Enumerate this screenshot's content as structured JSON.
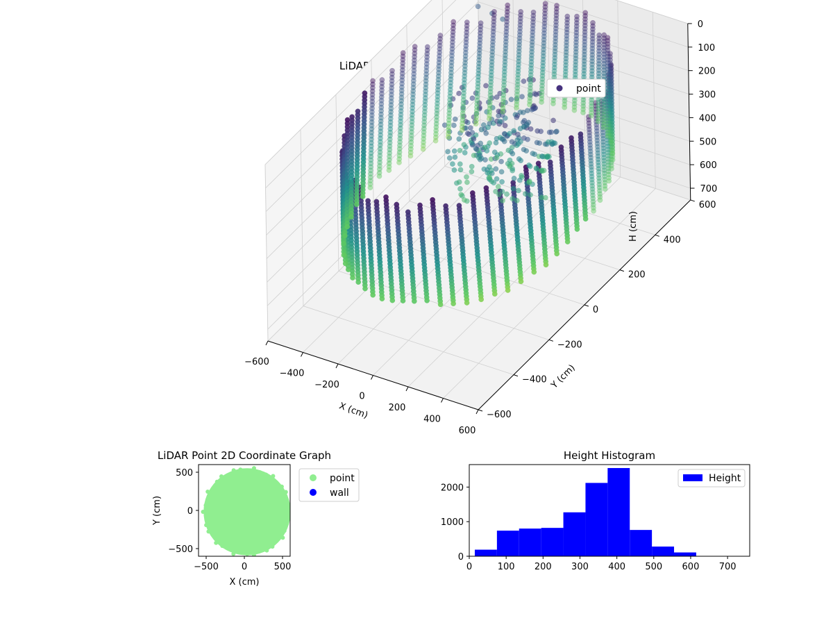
{
  "chart_data": [
    {
      "type": "scatter",
      "title": "LiDAR Point 3D Coordinate Graph",
      "projection": "3d",
      "xlabel": "X (cm)",
      "ylabel": "Y (cm)",
      "zlabel": "H (cm)",
      "xlim": [
        -600,
        600
      ],
      "ylim": [
        -600,
        600
      ],
      "zlim": [
        0,
        750
      ],
      "z_inverted": true,
      "x_ticks": [
        "−600",
        "−400",
        "−200",
        "0",
        "200",
        "400",
        "600"
      ],
      "y_ticks": [
        "−600",
        "−400",
        "−200",
        "0",
        "200",
        "400",
        "600"
      ],
      "z_ticks": [
        "0",
        "100",
        "200",
        "300",
        "400",
        "500",
        "600",
        "700"
      ],
      "colormap": "viridis",
      "grid": true,
      "legend": {
        "position": "top-right",
        "entries": [
          {
            "label": "point",
            "color": "#46327e"
          }
        ]
      },
      "series": [
        {
          "name": "point",
          "shape": "ring of vertical scan columns, radius ~550 cm"
        }
      ]
    },
    {
      "type": "scatter",
      "title": "LiDAR Point 2D Coordinate Graph",
      "xlabel": "X (cm)",
      "ylabel": "Y (cm)",
      "xlim": [
        -600,
        600
      ],
      "ylim": [
        -600,
        600
      ],
      "x_ticks": [
        "−500",
        "0",
        "500"
      ],
      "y_ticks": [
        "−500",
        "0",
        "500"
      ],
      "legend": {
        "position": "outside-right",
        "entries": [
          {
            "label": "point",
            "color": "#90ee90"
          },
          {
            "label": "wall",
            "color": "#0000ff"
          }
        ]
      },
      "series": [
        {
          "name": "point",
          "color": "#90ee90",
          "shape": "filled disc, radius ~560 cm"
        },
        {
          "name": "wall",
          "color": "#0000ff",
          "points": []
        }
      ]
    },
    {
      "type": "bar",
      "subtype": "histogram",
      "title": "Height Histogram",
      "xlim": [
        0,
        760
      ],
      "ylim": [
        0,
        2650
      ],
      "x_ticks": [
        "0",
        "100",
        "200",
        "300",
        "400",
        "500",
        "600",
        "700"
      ],
      "y_ticks": [
        "0",
        "1000",
        "2000"
      ],
      "color": "#0000ff",
      "legend": {
        "position": "top-right",
        "entries": [
          {
            "label": "Height",
            "color": "#0000ff"
          }
        ]
      },
      "bins": [
        {
          "start": 15,
          "end": 75,
          "value": 190
        },
        {
          "start": 75,
          "end": 135,
          "value": 740
        },
        {
          "start": 135,
          "end": 195,
          "value": 800
        },
        {
          "start": 195,
          "end": 255,
          "value": 820
        },
        {
          "start": 255,
          "end": 315,
          "value": 1270
        },
        {
          "start": 315,
          "end": 375,
          "value": 2120
        },
        {
          "start": 375,
          "end": 435,
          "value": 2550
        },
        {
          "start": 435,
          "end": 495,
          "value": 760
        },
        {
          "start": 495,
          "end": 555,
          "value": 280
        },
        {
          "start": 555,
          "end": 615,
          "value": 110
        },
        {
          "start": 615,
          "end": 675,
          "value": 0
        },
        {
          "start": 675,
          "end": 735,
          "value": 0
        }
      ]
    }
  ]
}
